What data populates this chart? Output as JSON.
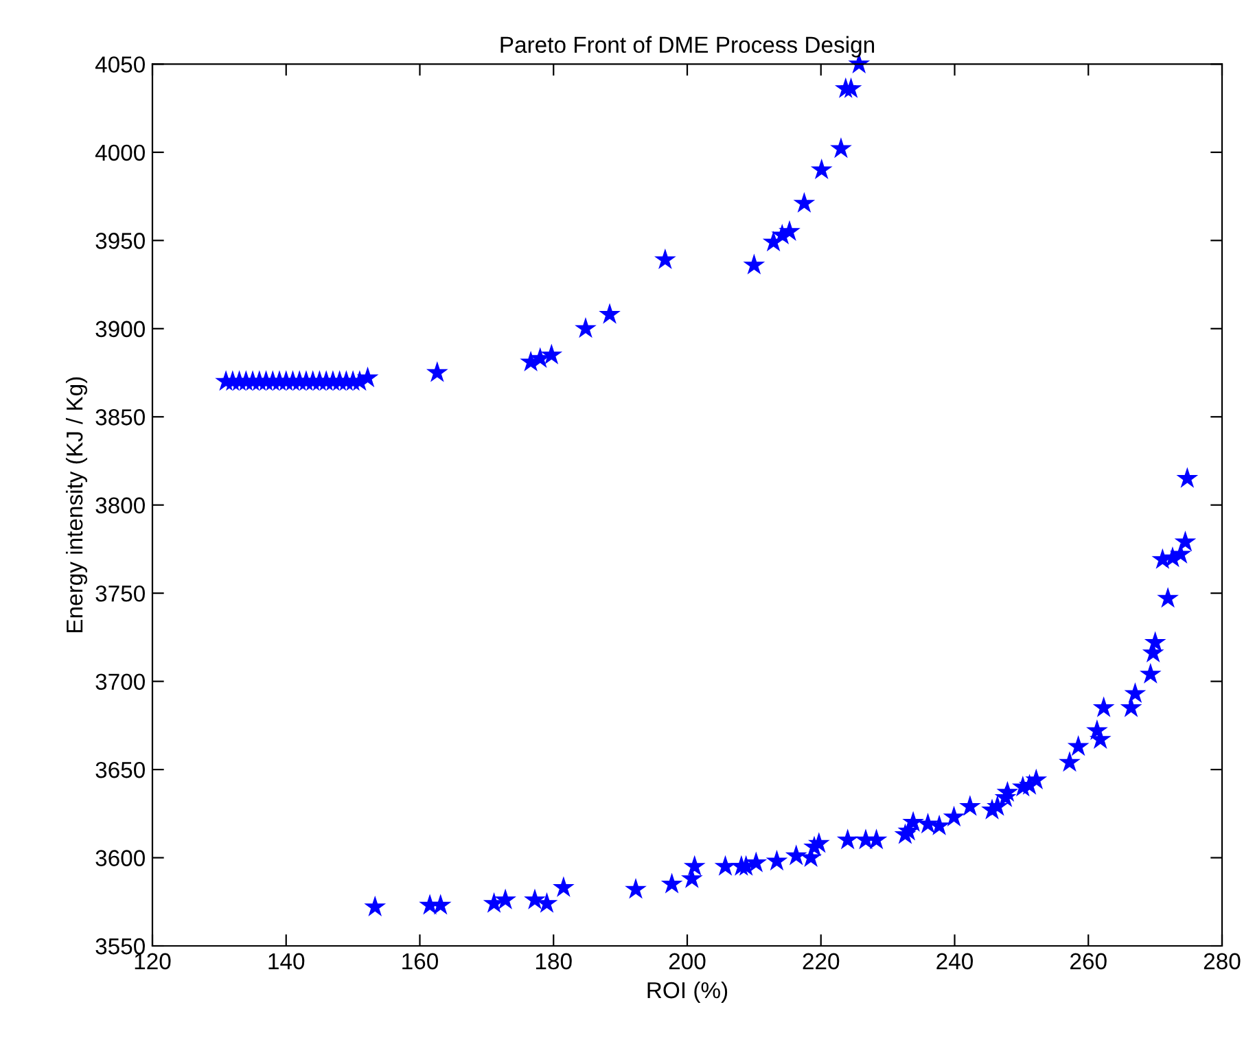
{
  "chart_data": {
    "type": "scatter",
    "title": "Pareto Front of DME Process Design",
    "xlabel": "ROI (%)",
    "ylabel": "Energy intensity (KJ / Kg)",
    "series": [
      {
        "color": "#0000ff",
        "x": [
          131,
          132,
          133,
          134,
          135,
          136,
          137,
          138,
          139,
          140,
          141,
          142,
          143,
          144,
          145,
          146,
          147,
          148,
          149,
          150,
          151,
          152.2,
          162.6,
          176.6,
          178,
          179.7,
          184.8,
          188.4,
          196.7,
          210,
          212.9,
          214.2,
          215.3,
          217.5,
          220.1,
          223,
          223.7,
          224.5,
          225.7
        ],
        "values": [
          3870,
          3870,
          3870,
          3870,
          3870,
          3870,
          3870,
          3870,
          3870,
          3870,
          3870,
          3870,
          3870,
          3870,
          3870,
          3870,
          3870,
          3870,
          3870,
          3870,
          3870,
          3872,
          3875,
          3881,
          3883,
          3885,
          3900,
          3908,
          3939,
          3936,
          3949,
          3953,
          3955,
          3971,
          3990,
          4002,
          4036,
          4036,
          4050
        ]
      },
      {
        "color": "#0000ff",
        "x": [
          153.3,
          161.5,
          163.1,
          171.1,
          172.8,
          177.2,
          179,
          181.5,
          192.3,
          197.7,
          200.7,
          201.1,
          205.7,
          208.1,
          208.8,
          210.3,
          213.4,
          216.3,
          218.5,
          219,
          219.7,
          224,
          226.7,
          228.3,
          232.6,
          233.1,
          233.8,
          236,
          237.7,
          239.9,
          242.3,
          245.6,
          246.4,
          247.6,
          247.9,
          250.2,
          251.2,
          252.2,
          257.2,
          258.5,
          261.3,
          261.8,
          262.3,
          266.4,
          267,
          269.3,
          269.7,
          270,
          271.9,
          271.1,
          272.6,
          273.8,
          274.5,
          274.8
        ],
        "values": [
          3572,
          3573,
          3573,
          3574,
          3576,
          3576,
          3574,
          3583,
          3582,
          3585,
          3588,
          3595,
          3595,
          3595,
          3595,
          3597,
          3598,
          3601,
          3600,
          3606,
          3608,
          3610,
          3610,
          3610,
          3613,
          3615,
          3620,
          3619,
          3618,
          3623,
          3629,
          3627,
          3629,
          3634,
          3637,
          3640,
          3641,
          3644,
          3654,
          3663,
          3672,
          3667,
          3685,
          3685,
          3693,
          3704,
          3716,
          3722,
          3747,
          3769,
          3770,
          3772,
          3779,
          3815
        ]
      }
    ],
    "marker": "star",
    "xlim": [
      120,
      280
    ],
    "ylim": [
      3550,
      4050
    ],
    "xticks": [
      120,
      140,
      160,
      180,
      200,
      220,
      240,
      260,
      280
    ],
    "yticks": [
      3550,
      3600,
      3650,
      3700,
      3750,
      3800,
      3850,
      3900,
      3950,
      4000,
      4050
    ],
    "grid": false,
    "legend": false
  }
}
